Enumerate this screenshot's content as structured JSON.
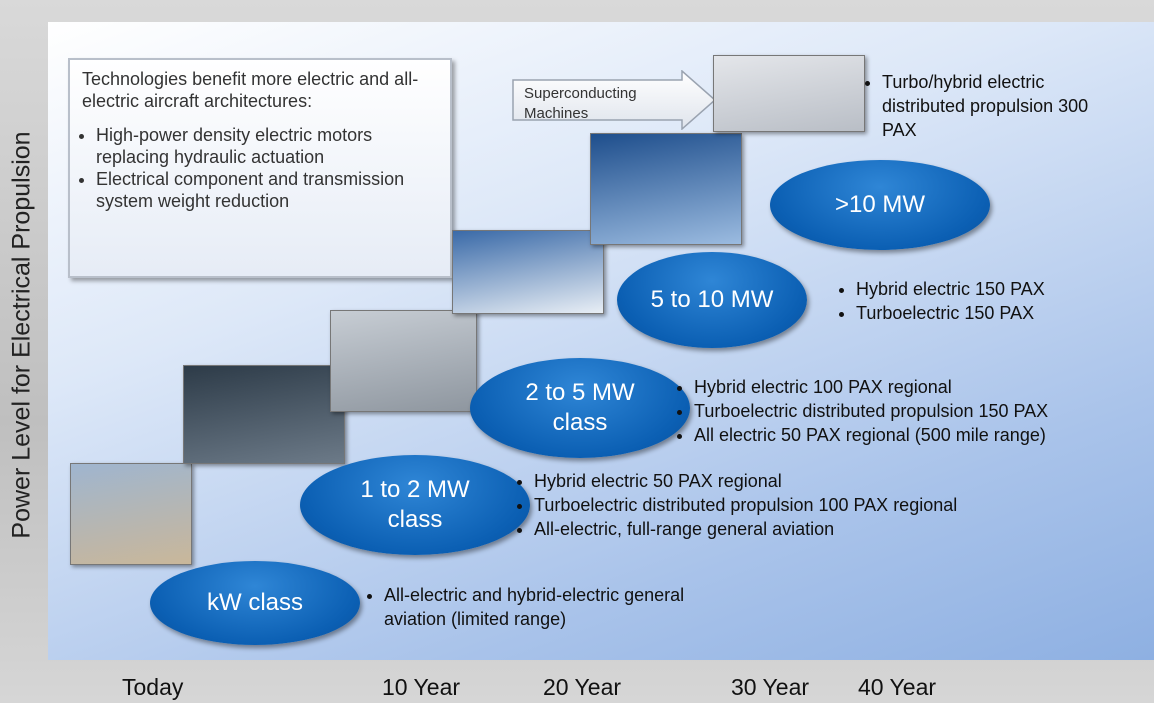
{
  "y_axis_label": "Power Level for Electrical Propulsion",
  "x_axis_labels": [
    "Today",
    "10 Year",
    "20 Year",
    "30 Year",
    "40 Year"
  ],
  "info_box": {
    "title": "Technologies benefit more electric and all-electric aircraft architectures:",
    "bullets": [
      "High-power density electric motors replacing hydraulic actuation",
      "Electrical component and transmission system weight reduction"
    ]
  },
  "arrow_label": "Superconducting Machines",
  "stages": [
    {
      "label": "kW class",
      "bullets": [
        "All-electric and hybrid-electric general aviation (limited range)"
      ]
    },
    {
      "label": "1 to 2 MW class",
      "bullets": [
        "Hybrid electric 50 PAX regional",
        "Turboelectric distributed propulsion 100 PAX regional",
        "All-electric, full-range general aviation"
      ]
    },
    {
      "label": "2 to 5 MW class",
      "bullets": [
        "Hybrid electric 100 PAX regional",
        "Turboelectric distributed propulsion 150 PAX",
        "All electric 50 PAX regional (500 mile range)"
      ]
    },
    {
      "label": "5 to 10 MW",
      "bullets": [
        "Hybrid electric 150 PAX",
        "Turboelectric 150 PAX"
      ]
    },
    {
      "label": ">10 MW",
      "bullets": [
        "Turbo/hybrid electric distributed propulsion 300 PAX"
      ]
    }
  ]
}
